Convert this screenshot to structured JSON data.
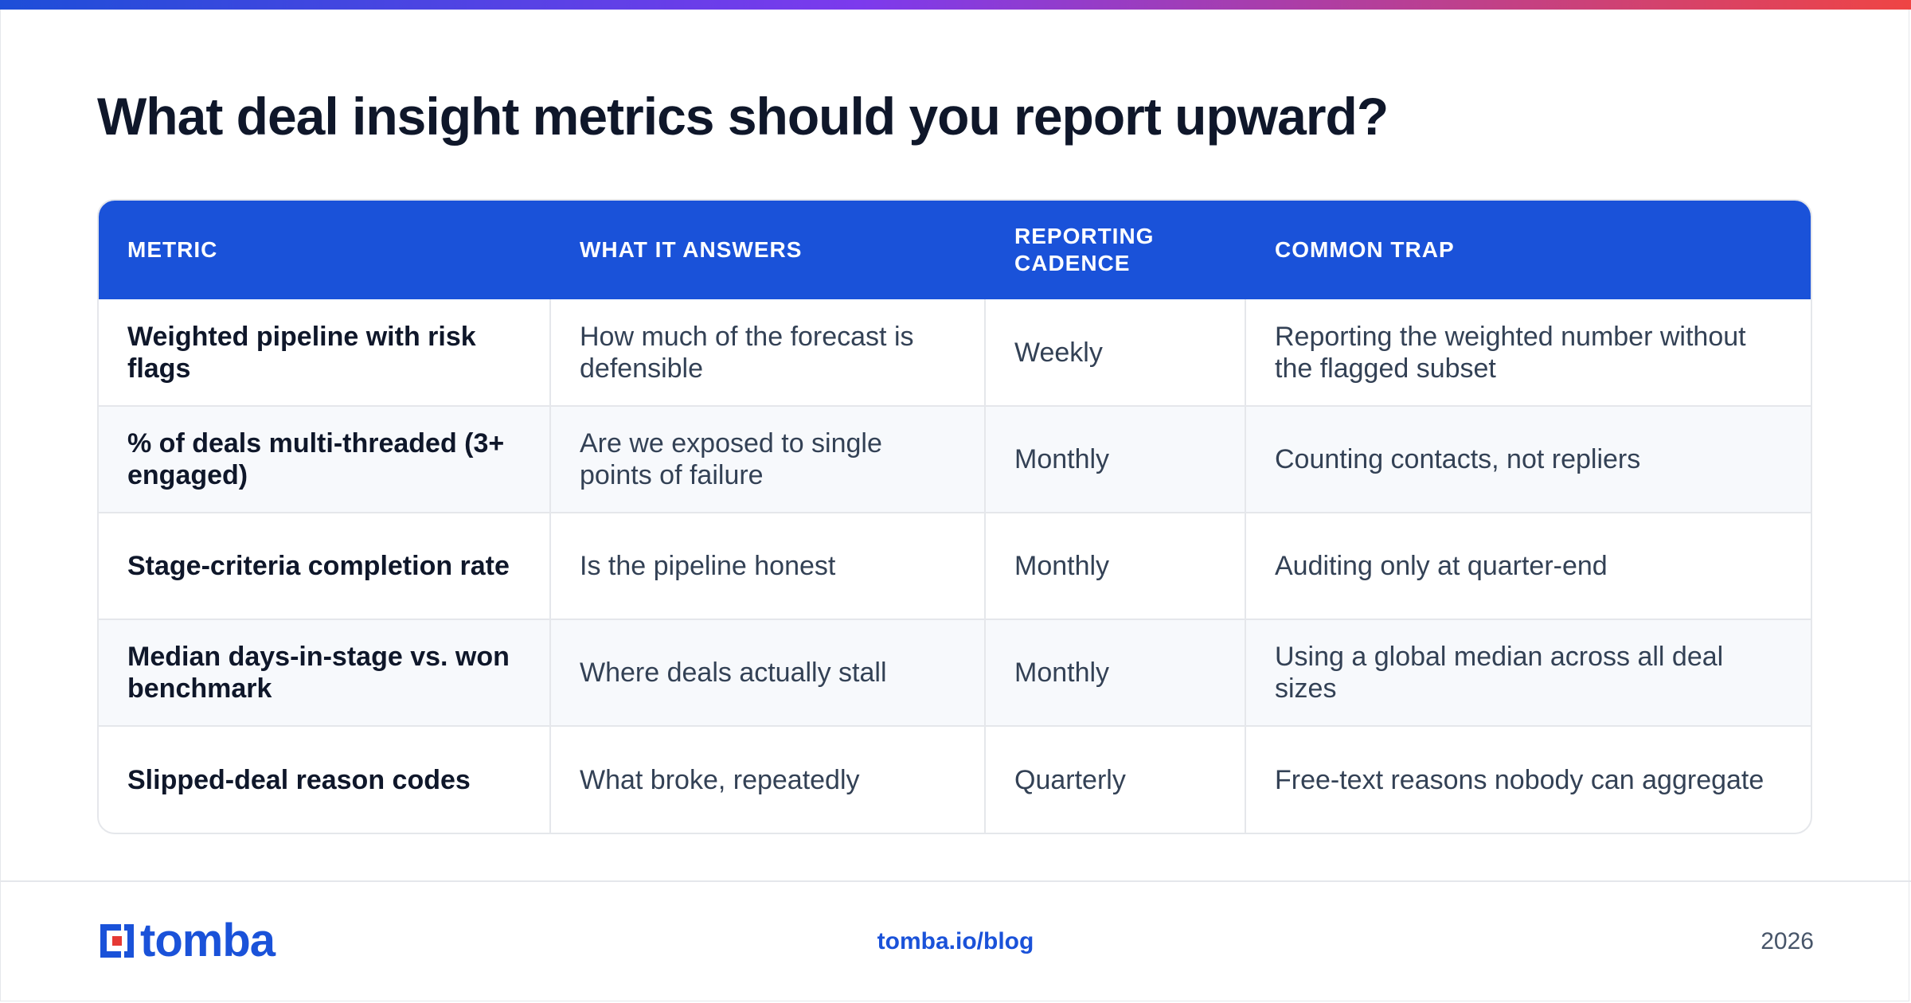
{
  "title": "What deal insight metrics should you report upward?",
  "table": {
    "headers": [
      "METRIC",
      "WHAT IT ANSWERS",
      "REPORTING CADENCE",
      "COMMON TRAP"
    ],
    "rows": [
      [
        "Weighted pipeline with risk flags",
        "How much of the forecast is defensible",
        "Weekly",
        "Reporting the weighted number without the flagged subset"
      ],
      [
        "% of deals multi-threaded (3+ engaged)",
        "Are we exposed to single points of failure",
        "Monthly",
        "Counting contacts, not repliers"
      ],
      [
        "Stage-criteria completion rate",
        "Is the pipeline honest",
        "Monthly",
        "Auditing only at quarter-end"
      ],
      [
        "Median days-in-stage vs. won benchmark",
        "Where deals actually stall",
        "Monthly",
        "Using a global median across all deal sizes"
      ],
      [
        "Slipped-deal reason codes",
        "What broke, repeatedly",
        "Quarterly",
        "Free-text reasons nobody can aggregate"
      ]
    ]
  },
  "footer": {
    "logo_text": "tomba",
    "link": "tomba.io/blog",
    "year": "2026"
  },
  "colors": {
    "accent": "#1a52d9",
    "logo_red": "#e53935",
    "gradient_start": "#1d4ed8",
    "gradient_end": "#ef4444"
  },
  "icons": {
    "logo": "tomba-logo-icon"
  }
}
